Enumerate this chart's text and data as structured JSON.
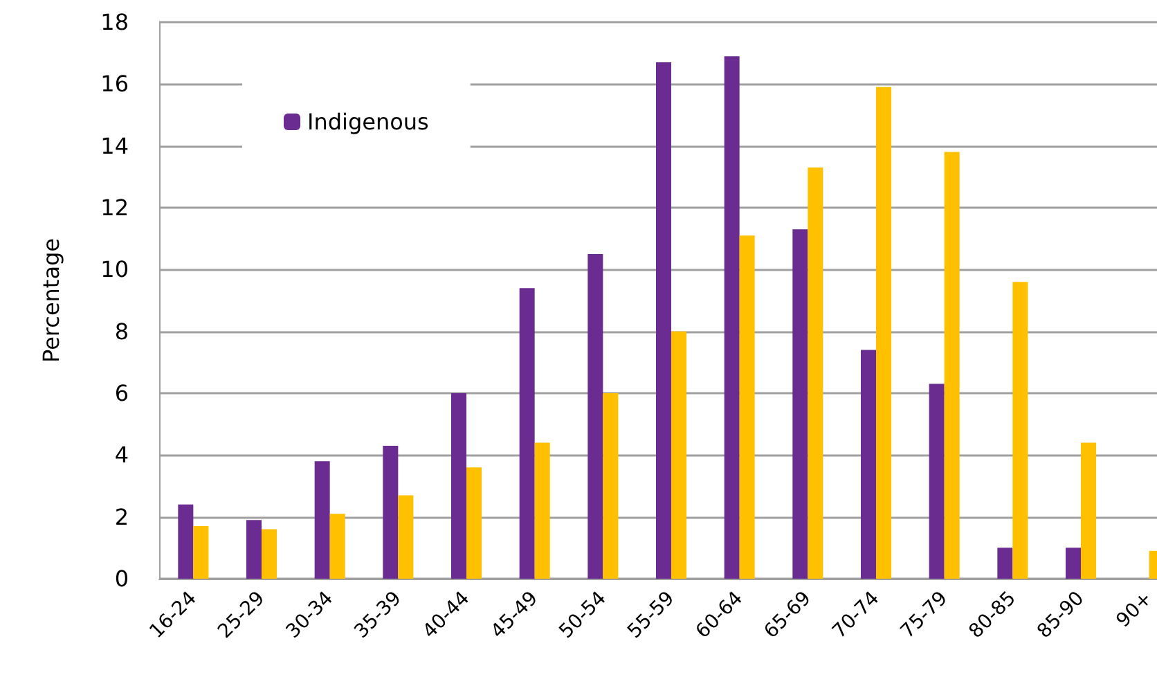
{
  "chart_data": {
    "type": "bar",
    "ylabel": "Percentage",
    "categories": [
      "16-24",
      "25-29",
      "30-34",
      "35-39",
      "40-44",
      "45-49",
      "50-54",
      "55-59",
      "60-64",
      "65-69",
      "70-74",
      "75-79",
      "80-85",
      "85-90",
      "90+"
    ],
    "series": [
      {
        "name": "Indigenous",
        "color": "#6a2c91",
        "values": [
          2.4,
          1.9,
          3.8,
          4.3,
          6.0,
          9.4,
          10.5,
          16.7,
          16.9,
          11.3,
          7.4,
          6.3,
          1.0,
          1.0,
          null
        ]
      },
      {
        "color": "#ffc000",
        "values": [
          1.7,
          1.6,
          2.1,
          2.7,
          3.6,
          4.4,
          6.0,
          8.0,
          11.1,
          13.3,
          15.9,
          13.8,
          9.6,
          4.4,
          0.9
        ]
      }
    ],
    "ylim": [
      0,
      18
    ],
    "yticks": [
      0,
      2,
      4,
      6,
      8,
      10,
      12,
      14,
      16,
      18
    ],
    "grid": "y",
    "legend": "top left"
  }
}
